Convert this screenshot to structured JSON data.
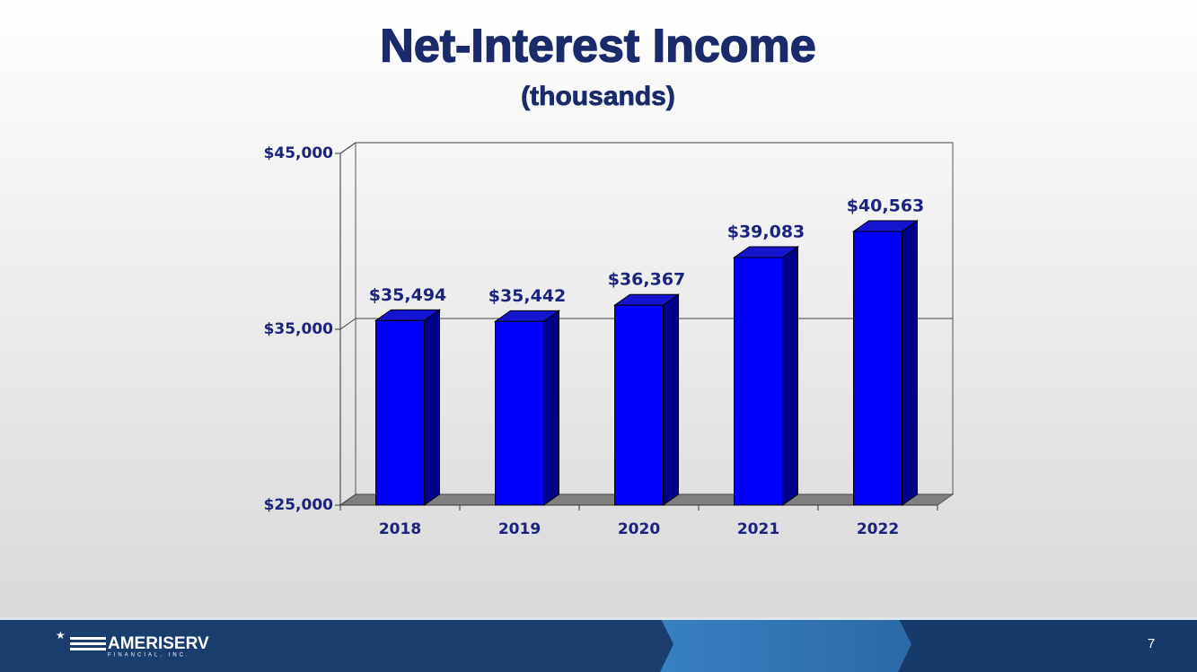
{
  "chart_data": {
    "type": "bar3d",
    "title": "Net-Interest Income",
    "subtitle": "(thousands)",
    "categories": [
      "2018",
      "2019",
      "2020",
      "2021",
      "2022"
    ],
    "values": [
      35494,
      35442,
      36367,
      39083,
      40563
    ],
    "value_labels": [
      "$35,494",
      "$35,442",
      "$36,367",
      "$39,083",
      "$40,563"
    ],
    "color": "#0000ff",
    "ylim": [
      25000,
      45000
    ],
    "yticks": [
      {
        "value": 25000,
        "label": "$25,000"
      },
      {
        "value": 35000,
        "label": "$35,000"
      },
      {
        "value": 45000,
        "label": "$45,000"
      }
    ],
    "grid": true
  },
  "footer": {
    "logo": "AMERISERV",
    "logo_sub": "FINANCIAL, INC.",
    "page_number": "7"
  }
}
